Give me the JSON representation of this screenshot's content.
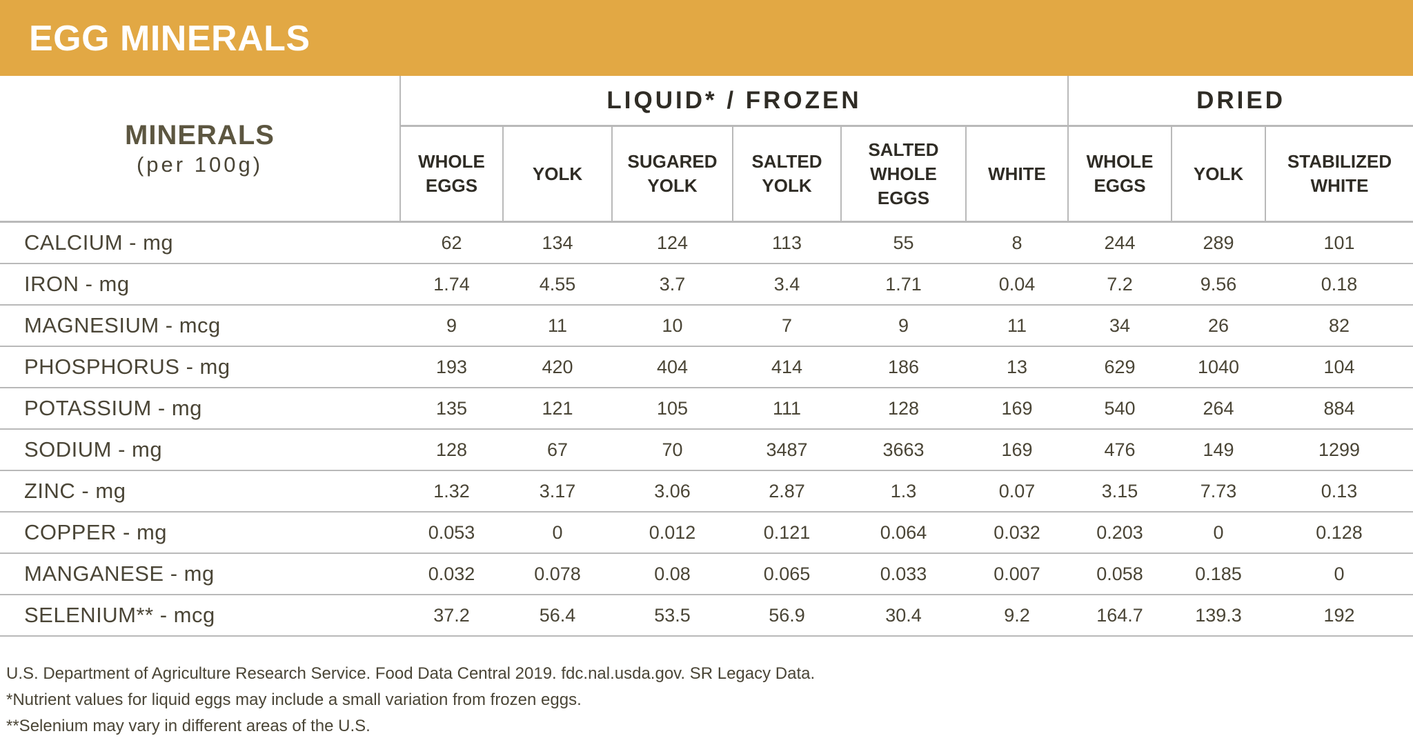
{
  "title": "EGG MINERALS",
  "header": {
    "minerals_label": "MINERALS",
    "minerals_unit": "(per 100g)",
    "groups": [
      "LIQUID* / FROZEN",
      "DRIED"
    ],
    "columns": [
      "WHOLE EGGS",
      "YOLK",
      "SUGARED YOLK",
      "SALTED YOLK",
      "SALTED WHOLE EGGS",
      "WHITE",
      "WHOLE EGGS",
      "YOLK",
      "STABILIZED WHITE"
    ]
  },
  "rows": [
    {
      "label": "CALCIUM - mg",
      "values": [
        "62",
        "134",
        "124",
        "113",
        "55",
        "8",
        "244",
        "289",
        "101"
      ]
    },
    {
      "label": "IRON - mg",
      "values": [
        "1.74",
        "4.55",
        "3.7",
        "3.4",
        "1.71",
        "0.04",
        "7.2",
        "9.56",
        "0.18"
      ]
    },
    {
      "label": "MAGNESIUM - mcg",
      "values": [
        "9",
        "11",
        "10",
        "7",
        "9",
        "11",
        "34",
        "26",
        "82"
      ]
    },
    {
      "label": "PHOSPHORUS - mg",
      "values": [
        "193",
        "420",
        "404",
        "414",
        "186",
        "13",
        "629",
        "1040",
        "104"
      ]
    },
    {
      "label": "POTASSIUM - mg",
      "values": [
        "135",
        "121",
        "105",
        "111",
        "128",
        "169",
        "540",
        "264",
        "884"
      ]
    },
    {
      "label": "SODIUM - mg",
      "values": [
        "128",
        "67",
        "70",
        "3487",
        "3663",
        "169",
        "476",
        "149",
        "1299"
      ]
    },
    {
      "label": "ZINC - mg",
      "values": [
        "1.32",
        "3.17",
        "3.06",
        "2.87",
        "1.3",
        "0.07",
        "3.15",
        "7.73",
        "0.13"
      ]
    },
    {
      "label": "COPPER - mg",
      "values": [
        "0.053",
        "0",
        "0.012",
        "0.121",
        "0.064",
        "0.032",
        "0.203",
        "0",
        "0.128"
      ]
    },
    {
      "label": "MANGANESE - mg",
      "values": [
        "0.032",
        "0.078",
        "0.08",
        "0.065",
        "0.033",
        "0.007",
        "0.058",
        "0.185",
        "0"
      ]
    },
    {
      "label": "SELENIUM** - mcg",
      "values": [
        "37.2",
        "56.4",
        "53.5",
        "56.9",
        "30.4",
        "9.2",
        "164.7",
        "139.3",
        "192"
      ]
    }
  ],
  "footnotes": [
    "U.S. Department of Agriculture Research Service. Food Data Central 2019. fdc.nal.usda.gov. SR Legacy Data.",
    "*Nutrient values for liquid eggs may include a small variation from frozen eggs.",
    "**Selenium may vary in different areas of the U.S."
  ],
  "colors": {
    "banner": "#e2a844",
    "text": "#4a4536",
    "rule": "#b9b9b9"
  }
}
